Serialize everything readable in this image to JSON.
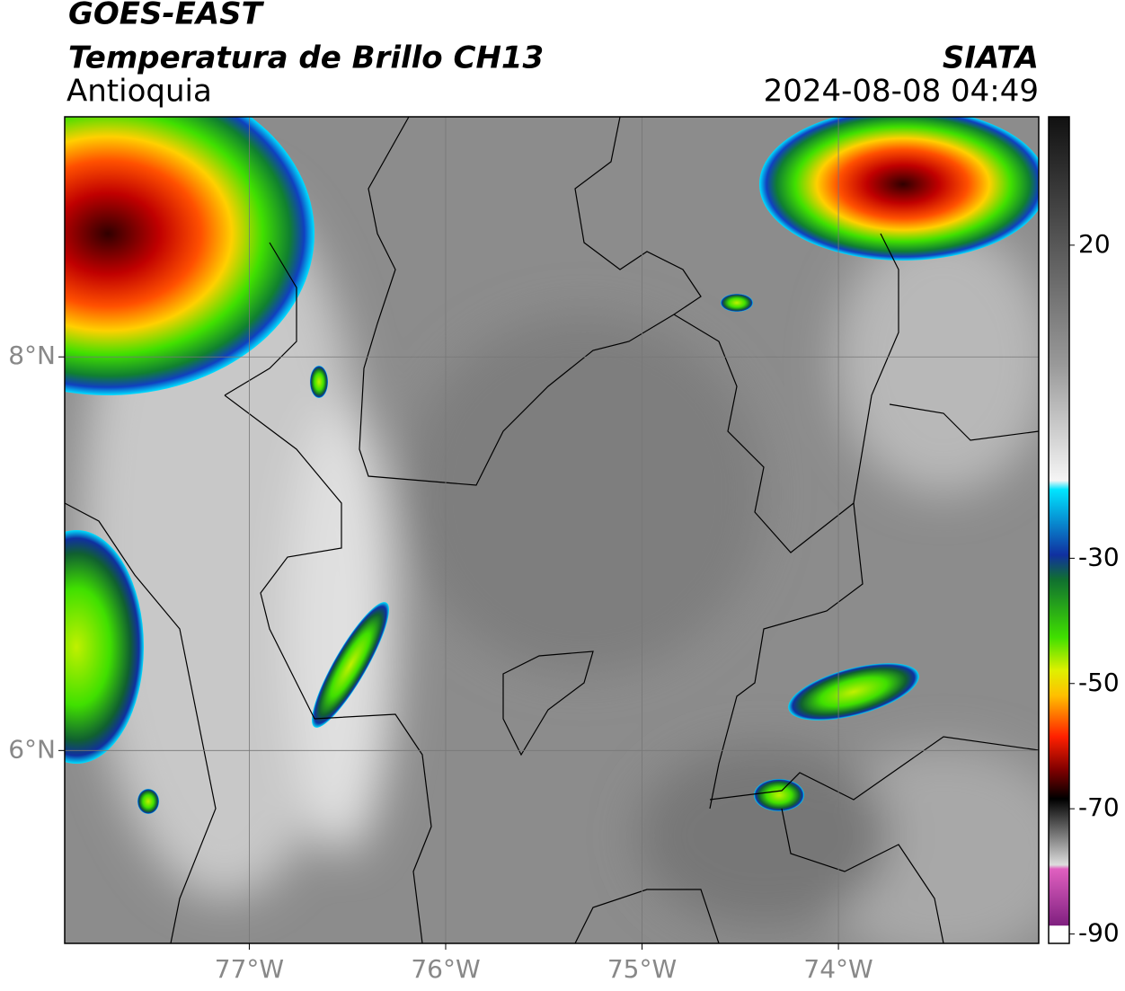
{
  "header": {
    "title": "GOES-EAST",
    "subtitle": "Temperatura de Brillo CH13",
    "region": "Antioquia",
    "agency": "SIATA",
    "datetime": "2024-08-08 04:49"
  },
  "map": {
    "xlim": [
      -77.94,
      -72.98
    ],
    "ylim": [
      5.02,
      9.22
    ],
    "grid": true,
    "xticks": [
      {
        "value": -77,
        "label": "77°W"
      },
      {
        "value": -76,
        "label": "76°W"
      },
      {
        "value": -75,
        "label": "75°W"
      },
      {
        "value": -74,
        "label": "74°W"
      }
    ],
    "yticks": [
      {
        "value": 8,
        "label": "8°N"
      },
      {
        "value": 6,
        "label": "6°N"
      }
    ]
  },
  "colorbar": {
    "lim": [
      -91.5,
      40.5
    ],
    "ticks": [
      20,
      -30,
      -50,
      -70,
      -90
    ]
  }
}
